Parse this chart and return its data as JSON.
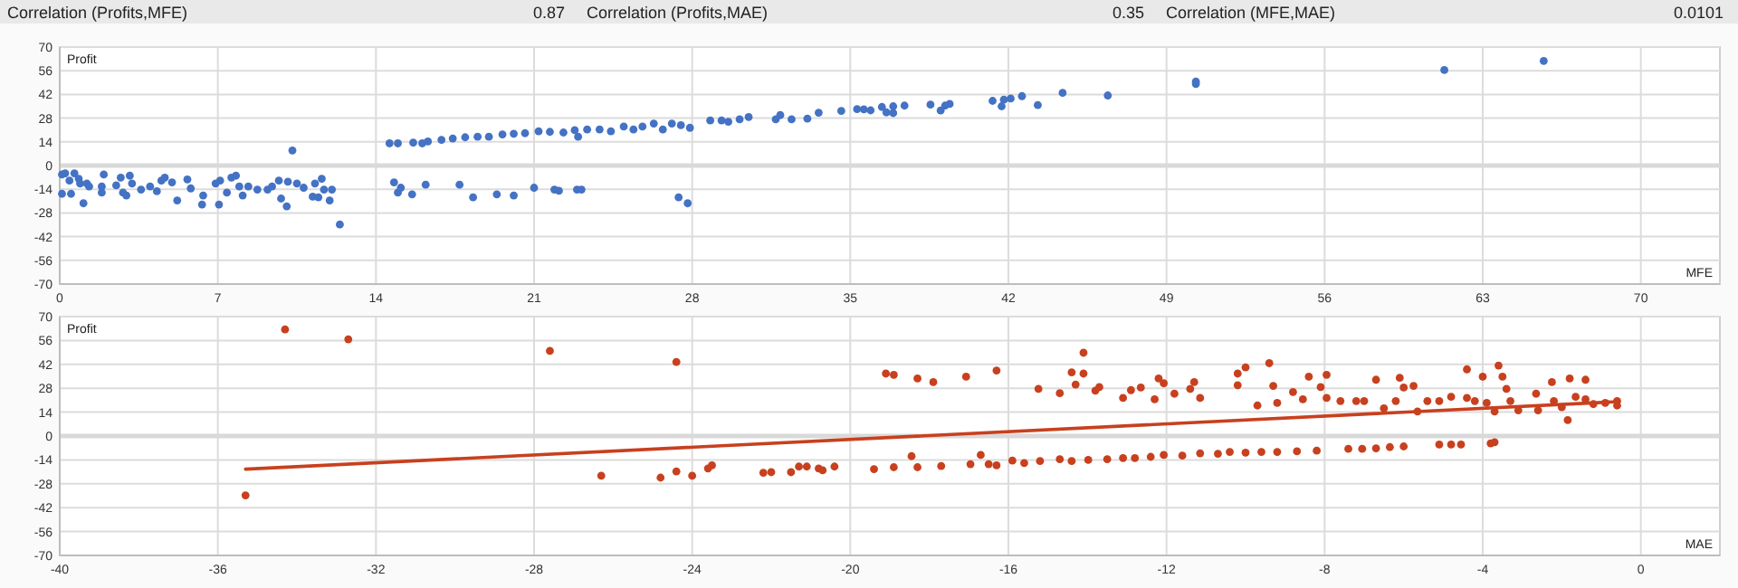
{
  "chart_data": [
    {
      "type": "other",
      "annotations": [
        "Correlation (Profits,MFE)",
        "0.87",
        "Correlation (Profits,MAE)",
        "0.35",
        "Correlation (MFE,MAE)",
        "0.0101"
      ]
    },
    {
      "type": "scatter",
      "xlabel": "MFE",
      "ylabel": "Profit",
      "xlim": [
        0,
        73.5
      ],
      "xticks": [
        0,
        7,
        14,
        21,
        28,
        35,
        42,
        49,
        56,
        63,
        70
      ],
      "ylim": [
        -70,
        70
      ],
      "yticks": [
        -70,
        -56,
        -42,
        -28,
        -14,
        0,
        14,
        28,
        42,
        56,
        70
      ],
      "grid": true,
      "marker": "circle",
      "ref_lines": [
        {
          "axis": "y",
          "value": 0,
          "color": "#d9d9d9"
        }
      ],
      "series": [
        {
          "color": "#4472c4",
          "x": [
            0.1,
            0.1,
            0.24,
            0.43,
            0.5,
            0.65,
            0.84,
            0.9,
            1.05,
            1.2,
            1.3,
            1.86,
            1.86,
            1.95,
            2.5,
            2.7,
            2.8,
            2.95,
            3.1,
            3.2,
            3.6,
            4.0,
            4.3,
            4.5,
            4.65,
            4.97,
            5.2,
            5.65,
            5.8,
            6.3,
            6.35,
            6.9,
            7.05,
            7.1,
            7.4,
            7.6,
            7.8,
            7.95,
            8.1,
            8.35,
            8.75,
            9.2,
            9.4,
            9.7,
            9.8,
            10.05,
            10.1,
            10.3,
            10.5,
            10.8,
            11.2,
            11.3,
            11.45,
            11.6,
            11.7,
            11.95,
            12.05,
            12.4,
            14.8,
            14.97,
            15.1,
            15.6,
            16.2,
            17.7,
            18.3,
            19.35,
            20.1,
            21,
            21.9,
            22.1,
            22.9,
            23.1,
            27.4,
            27.8,
            14.6,
            14.97,
            15.65,
            16.05,
            16.3,
            16.9,
            17.4,
            17.95,
            18.5,
            19.0,
            19.6,
            20.1,
            20.6,
            21.2,
            21.7,
            22.3,
            22.8,
            22.95,
            23.35,
            23.9,
            24.4,
            24.97,
            25.4,
            25.8,
            26.3,
            26.7,
            27.1,
            27.5,
            27.9,
            28.8,
            29.3,
            29.6,
            30.1,
            30.5,
            31.7,
            31.9,
            32.4,
            33.1,
            33.6,
            34.6,
            35.3,
            35.9,
            35.6,
            36.4,
            36.6,
            36.9,
            36.9,
            37.4,
            38.55,
            39,
            39.2,
            39.4,
            41.3,
            41.7,
            41.8,
            42.1,
            42.6,
            43.3,
            44.4,
            46.4,
            50.3,
            50.3,
            61.3,
            65.7
          ],
          "values": [
            -16.7,
            -5.3,
            -4.6,
            -8.9,
            -16.7,
            -4.6,
            -7.8,
            -10.6,
            -22.3,
            -10.6,
            -12.4,
            -12.4,
            -16,
            -5.3,
            -11.7,
            -7.1,
            -16,
            -17.7,
            -6,
            -10.6,
            -14.2,
            -12.4,
            -15.2,
            -8.9,
            -7.1,
            -9.9,
            -20.6,
            -8.2,
            -13.5,
            -23,
            -17.7,
            -10.6,
            -23,
            -8.9,
            -16,
            -7.1,
            -6,
            -12.4,
            -17.7,
            -12.4,
            -14.2,
            -14.2,
            -12.4,
            -8.9,
            -19.5,
            -24.1,
            -9.6,
            8.9,
            -10.6,
            -13.1,
            -18.4,
            -10.6,
            -18.8,
            -7.8,
            -14.2,
            -20.6,
            -14.2,
            -34.8,
            -9.9,
            -16,
            -13.1,
            -17,
            -11.3,
            -11.3,
            -18.8,
            -17,
            -17.7,
            -13.1,
            -14.2,
            -14.9,
            -14.2,
            -14.2,
            -18.8,
            -22.3,
            13.1,
            13.1,
            13.5,
            13.1,
            14.2,
            15.2,
            16,
            16.7,
            17,
            17,
            18.4,
            18.8,
            19.1,
            20.2,
            19.9,
            19.5,
            20.9,
            17,
            21.3,
            21.3,
            20.2,
            23,
            21.3,
            23,
            24.8,
            21.3,
            24.8,
            23.8,
            22.3,
            26.6,
            26.6,
            25.9,
            27.3,
            28.7,
            27.3,
            29.8,
            27.3,
            27.7,
            31.2,
            32.3,
            33.3,
            32.6,
            33.2,
            34.6,
            31.4,
            35,
            31,
            35.4,
            36,
            32.5,
            35.4,
            36.4,
            38.2,
            35,
            38.9,
            39.6,
            41,
            35.7,
            42.9,
            41.4,
            49.6,
            48.2,
            56.4,
            61.8
          ]
        }
      ]
    },
    {
      "type": "scatter",
      "xlabel": "MAE",
      "ylabel": "Profit",
      "xlim": [
        -40,
        2
      ],
      "xticks": [
        -40,
        -36,
        -32,
        -28,
        -24,
        -20,
        -16,
        -12,
        -8,
        -4,
        0
      ],
      "ylim": [
        -70,
        70
      ],
      "yticks": [
        -70,
        -56,
        -42,
        -28,
        -14,
        0,
        14,
        28,
        42,
        56,
        70
      ],
      "grid": true,
      "marker": "circle",
      "ref_lines": [
        {
          "axis": "y",
          "value": 0,
          "color": "#d9d9d9"
        }
      ],
      "series": [
        {
          "color": "#c8401e",
          "x": [
            -34.3,
            -32.7,
            -27.6,
            -24.4,
            -35.3,
            -26.3,
            -24.8,
            -24.4,
            -24,
            -23.6,
            -23.5,
            -22.2,
            -22,
            -21.5,
            -21.3,
            -21.1,
            -20.8,
            -20.7,
            -20.4,
            -19.4,
            -18.9,
            -18.45,
            -18.3,
            -17.7,
            -16.96,
            -16.7,
            -16.5,
            -16.3,
            -15.9,
            -15.6,
            -15.2,
            -14.7,
            -14.4,
            -13.98,
            -13.5,
            -13.1,
            -12.8,
            -12.4,
            -12.07,
            -11.6,
            -11.15,
            -10.7,
            -10.4,
            -10,
            -9.6,
            -9.2,
            -8.7,
            -8.2,
            -7.4,
            -7.05,
            -6.7,
            -6.35,
            -6.0,
            -5.1,
            -4.8,
            -4.55,
            -3.8,
            -3.7,
            -19.1,
            -18.9,
            -18.3,
            -17.9,
            -17.07,
            -16.3,
            -15.24,
            -14.7,
            -14.4,
            -14.3,
            -14.1,
            -14.1,
            -13.8,
            -13.7,
            -13.1,
            -12.9,
            -12.65,
            -12.3,
            -12.2,
            -12.07,
            -11.8,
            -11.4,
            -11.3,
            -11.15,
            -10.2,
            -10.2,
            -10,
            -9.7,
            -9.4,
            -9.3,
            -9.2,
            -8.8,
            -8.55,
            -8.4,
            -8.1,
            -7.95,
            -7.95,
            -7.6,
            -7.2,
            -7,
            -6.7,
            -6.5,
            -6.2,
            -6.1,
            -6.0,
            -5.75,
            -5.65,
            -5.4,
            -5.1,
            -4.8,
            -4.4,
            -4.4,
            -4.2,
            -4,
            -3.9,
            -3.7,
            -3.6,
            -3.5,
            -3.4,
            -3.3,
            -3.1,
            -2.65,
            -2.6,
            -2.25,
            -2.2,
            -2,
            -1.85,
            -1.8,
            -1.65,
            -1.4,
            -1.4,
            -1.2,
            -0.9,
            -0.6,
            -0.6
          ],
          "values": [
            62.5,
            56.7,
            49.9,
            43.4,
            -34.8,
            -23.3,
            -24.4,
            -20.8,
            -23.3,
            -19,
            -17.2,
            -21.5,
            -21.2,
            -21.2,
            -17.9,
            -17.9,
            -19,
            -20.1,
            -17.9,
            -19.4,
            -18.3,
            -11.8,
            -18.3,
            -17.6,
            -16.5,
            -11.1,
            -16.5,
            -17.2,
            -14.4,
            -15.8,
            -14.7,
            -13.6,
            -14.7,
            -14,
            -13.6,
            -12.9,
            -12.9,
            -12.2,
            -11.1,
            -11.5,
            -10.1,
            -10.4,
            -9.3,
            -9.7,
            -9.3,
            -9.3,
            -9,
            -8.6,
            -7.5,
            -7.5,
            -7.2,
            -6.5,
            -6.1,
            -5,
            -5,
            -5,
            -4.3,
            -3.6,
            36.6,
            35.9,
            33.7,
            31.6,
            34.8,
            38.4,
            27.6,
            25.1,
            37.3,
            30.2,
            36.6,
            48.8,
            26.6,
            28.7,
            22.3,
            26.9,
            28.4,
            21.5,
            33.7,
            30.9,
            24.8,
            27.6,
            31.6,
            22.3,
            36.6,
            29.8,
            40.2,
            17.9,
            42.7,
            29.4,
            19.4,
            25.8,
            21.5,
            34.8,
            28.7,
            35.9,
            22.3,
            20.5,
            20.5,
            20.5,
            33,
            16.2,
            20.5,
            34.1,
            28.4,
            29.4,
            14.4,
            20.5,
            20.5,
            23,
            22.3,
            39.1,
            20.5,
            34.8,
            19.4,
            14.4,
            41.3,
            34.8,
            27.6,
            20.5,
            15.1,
            24.8,
            15.1,
            31.6,
            20.5,
            16.9,
            9.3,
            33.7,
            23,
            33,
            21.5,
            18.7,
            19.4,
            17.9,
            20.5
          ]
        },
        {
          "type": "line",
          "color": "#c8401e",
          "x": [
            -35.3,
            -0.7
          ],
          "values": [
            -19.4,
            20
          ],
          "marker": "none"
        }
      ]
    }
  ]
}
